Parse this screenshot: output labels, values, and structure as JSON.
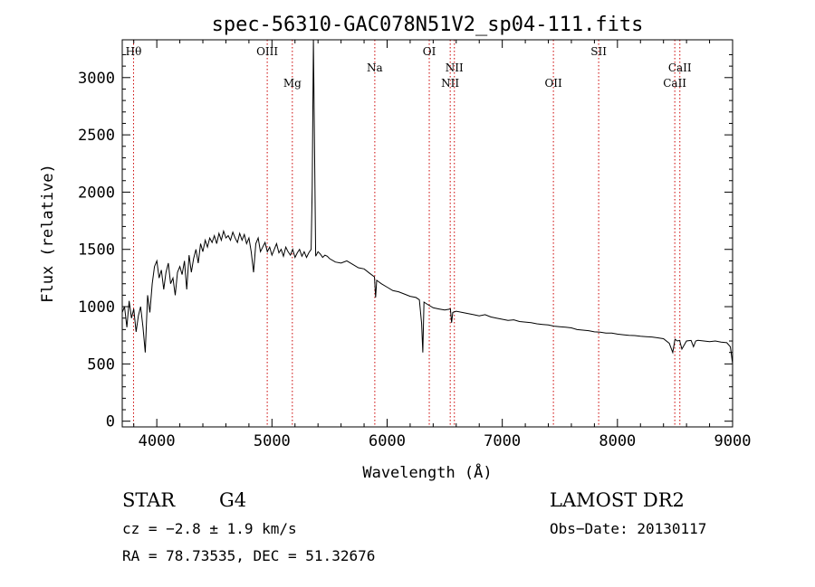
{
  "chart_data": {
    "type": "line",
    "title": "spec-56310-GAC078N51V2_sp04-111.fits",
    "xlabel": "Wavelength (Å)",
    "ylabel": "Flux (relative)",
    "xlim": [
      3700,
      9000
    ],
    "ylim": [
      -50,
      3330
    ],
    "xticks": [
      4000,
      5000,
      6000,
      7000,
      8000,
      9000
    ],
    "yticks": [
      0,
      500,
      1000,
      1500,
      2000,
      2500,
      3000
    ],
    "grid": false,
    "line_color": "#000000",
    "marker_color": "#cc0000",
    "spectral_lines": [
      {
        "label": "Hθ",
        "x": 3798,
        "row": "upper"
      },
      {
        "label": "OIII",
        "x": 4959,
        "row": "upper"
      },
      {
        "label": "Mg",
        "x": 5177,
        "row": "lower"
      },
      {
        "label": "Na",
        "x": 5893,
        "row": "mid"
      },
      {
        "label": "OI",
        "x": 6366,
        "row": "upper"
      },
      {
        "label": "NII",
        "x": 6584,
        "row": "mid"
      },
      {
        "label": "NII",
        "x": 6548,
        "row": "lower"
      },
      {
        "label": "OII",
        "x": 7444,
        "row": "lower"
      },
      {
        "label": "SII",
        "x": 7837,
        "row": "upper"
      },
      {
        "label": "CaII",
        "x": 8542,
        "row": "mid"
      },
      {
        "label": "CaII",
        "x": 8498,
        "row": "lower"
      }
    ],
    "series": [
      {
        "x": [
          3700,
          3720,
          3740,
          3760,
          3780,
          3800,
          3820,
          3840,
          3860,
          3880,
          3900,
          3920,
          3940,
          3960,
          3980,
          4000,
          4020,
          4040,
          4060,
          4080,
          4100,
          4120,
          4140,
          4160,
          4180,
          4200,
          4220,
          4240,
          4260,
          4280,
          4300,
          4320,
          4340,
          4360,
          4380,
          4400,
          4420,
          4440,
          4460,
          4480,
          4500,
          4520,
          4540,
          4560,
          4580,
          4600,
          4620,
          4640,
          4660,
          4680,
          4700,
          4720,
          4740,
          4760,
          4780,
          4800,
          4820,
          4840,
          4860,
          4880,
          4900,
          4920,
          4940,
          4960,
          4980,
          5000,
          5020,
          5040,
          5060,
          5080,
          5100,
          5120,
          5140,
          5160,
          5180,
          5200,
          5220,
          5240,
          5260,
          5280,
          5300,
          5320,
          5340,
          5350,
          5360,
          5380,
          5400,
          5420,
          5440,
          5460,
          5480,
          5500,
          5550,
          5600,
          5650,
          5700,
          5750,
          5800,
          5850,
          5890,
          5900,
          5910,
          5950,
          6000,
          6050,
          6100,
          6150,
          6200,
          6250,
          6280,
          6300,
          6310,
          6320,
          6350,
          6400,
          6450,
          6500,
          6550,
          6560,
          6570,
          6600,
          6650,
          6700,
          6750,
          6800,
          6850,
          6900,
          6950,
          7000,
          7050,
          7100,
          7150,
          7200,
          7250,
          7300,
          7350,
          7400,
          7450,
          7500,
          7550,
          7600,
          7650,
          7700,
          7750,
          7800,
          7850,
          7900,
          7950,
          8000,
          8050,
          8100,
          8150,
          8200,
          8250,
          8300,
          8350,
          8400,
          8450,
          8480,
          8500,
          8520,
          8540,
          8560,
          8600,
          8640,
          8660,
          8680,
          8700,
          8750,
          8800,
          8850,
          8900,
          8950,
          8980,
          8990,
          9000
        ],
        "y": [
          950,
          1000,
          820,
          1050,
          900,
          980,
          780,
          920,
          1000,
          820,
          600,
          1100,
          950,
          1200,
          1350,
          1400,
          1250,
          1320,
          1150,
          1300,
          1380,
          1200,
          1250,
          1100,
          1300,
          1350,
          1280,
          1400,
          1150,
          1450,
          1300,
          1420,
          1500,
          1380,
          1550,
          1480,
          1580,
          1520,
          1600,
          1560,
          1620,
          1550,
          1640,
          1580,
          1660,
          1600,
          1620,
          1580,
          1650,
          1600,
          1560,
          1640,
          1580,
          1630,
          1550,
          1600,
          1480,
          1300,
          1550,
          1600,
          1480,
          1520,
          1560,
          1480,
          1520,
          1450,
          1500,
          1550,
          1470,
          1500,
          1440,
          1520,
          1480,
          1450,
          1500,
          1430,
          1470,
          1500,
          1440,
          1480,
          1430,
          1470,
          1500,
          2050,
          3330,
          1440,
          1480,
          1460,
          1430,
          1450,
          1440,
          1420,
          1390,
          1380,
          1400,
          1370,
          1340,
          1330,
          1290,
          1260,
          1080,
          1230,
          1200,
          1170,
          1140,
          1130,
          1110,
          1090,
          1080,
          1060,
          850,
          600,
          1040,
          1020,
          990,
          980,
          970,
          980,
          860,
          950,
          960,
          950,
          940,
          930,
          920,
          930,
          910,
          900,
          890,
          880,
          885,
          870,
          865,
          860,
          850,
          845,
          840,
          830,
          825,
          820,
          815,
          800,
          795,
          790,
          780,
          778,
          770,
          770,
          760,
          755,
          750,
          748,
          742,
          738,
          735,
          728,
          720,
          680,
          600,
          715,
          700,
          705,
          630,
          700,
          705,
          650,
          700,
          706,
          700,
          695,
          700,
          690,
          685,
          650,
          580,
          500
        ],
        "x_note": "",
        "name": ""
      }
    ]
  },
  "info": {
    "object_type": "STAR",
    "subclass": "G4",
    "survey": "LAMOST DR2",
    "cz": "cz = −2.8 ± 1.9 km/s",
    "obs_date": "Obs−Date: 20130117",
    "coords": "RA =  78.73535, DEC =  51.32676"
  }
}
